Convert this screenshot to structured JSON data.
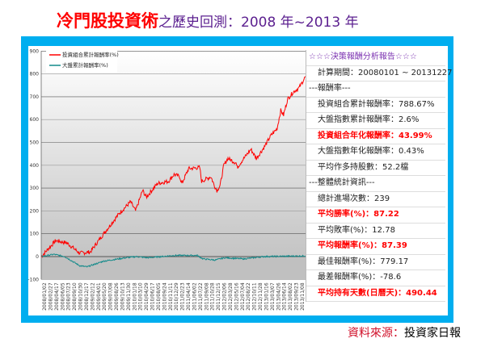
{
  "title": {
    "highlight": "冷門股投資術",
    "rest": "之歷史回測：2008 年~2013 年"
  },
  "panel": {
    "rows": [
      {
        "text": "☆☆☆決策報酬分析報告☆☆☆",
        "style": "head"
      },
      {
        "text": "計算期間：20080101 ~ 20131227",
        "style": ""
      },
      {
        "text": "---報酬率---",
        "style": "sec"
      },
      {
        "text": "投資組合累計報酬率：788.67%",
        "style": ""
      },
      {
        "text": "大盤指數累計報酬率：2.6%",
        "style": ""
      },
      {
        "text": "投資組合年化報酬率：43.99%",
        "style": "hl"
      },
      {
        "text": "大盤指數年化報酬率：0.43%",
        "style": ""
      },
      {
        "text": "平均作多持股數：52.2檔",
        "style": ""
      },
      {
        "text": "---整體統計資訊---",
        "style": "sec"
      },
      {
        "text": "總計進場次數：239",
        "style": ""
      },
      {
        "text": "平均勝率(%)：87.22",
        "style": "hl"
      },
      {
        "text": "平均敗率(%)：12.78",
        "style": ""
      },
      {
        "text": "平均報酬率(%)：87.39",
        "style": "hl"
      },
      {
        "text": "最佳報酬率(%)：779.17",
        "style": ""
      },
      {
        "text": "最差報酬率(%)：-78.6",
        "style": ""
      },
      {
        "text": "平均持有天數(日曆天)：490.44",
        "style": "hl"
      }
    ]
  },
  "footer": {
    "label": "資料來源：",
    "source": "投資家日報"
  },
  "chart_data": {
    "type": "line",
    "ylim": [
      -100,
      900
    ],
    "yticks": [
      -100,
      0,
      100,
      200,
      300,
      400,
      500,
      600,
      700,
      800,
      900
    ],
    "xlim": [
      "2008-01-02",
      "2013-12-27"
    ],
    "grid": true,
    "legend": "top-left",
    "xtick_labels": [
      "2008/01/02",
      "2008/02/27",
      "2008/04/17",
      "2008/06/05",
      "2008/07/23",
      "2008/09/10",
      "2008/10/30",
      "2008/12/17",
      "2009/02/12",
      "2009/04/01",
      "2009/05/20",
      "2009/07/08",
      "2009/08/26",
      "2009/10/13",
      "2009/11/30",
      "2010/01/18",
      "2010/03/10",
      "2010/04/29",
      "2010/06/17",
      "2010/08/05",
      "2010/09/24",
      "2010/11/11",
      "2010/12/29",
      "2011/02/23",
      "2011/04/14",
      "2011/06/02",
      "2011/07/22",
      "2011/09/08",
      "2011/10/28",
      "2011/12/15",
      "2012/02/06",
      "2012/03/28",
      "2012/05/16",
      "2012/07/04",
      "2012/08/22",
      "2012/10/11",
      "2012/11/28",
      "2013/01/16",
      "2013/03/07",
      "2013/04/26",
      "2013/06/14",
      "2013/08/02",
      "2013/09/23",
      "2013/11/08"
    ],
    "series": [
      {
        "name": "投資組合累計報酬率(%)",
        "color": "#ff0000",
        "points": [
          [
            "2008-01-02",
            0
          ],
          [
            "2008-05-01",
            70
          ],
          [
            "2008-08-01",
            60
          ],
          [
            "2008-11-15",
            15
          ],
          [
            "2009-02-10",
            20
          ],
          [
            "2009-06-01",
            100
          ],
          [
            "2009-10-10",
            190
          ],
          [
            "2010-01-10",
            240
          ],
          [
            "2010-02-20",
            200
          ],
          [
            "2010-04-20",
            290
          ],
          [
            "2010-05-20",
            260
          ],
          [
            "2010-08-20",
            320
          ],
          [
            "2010-11-20",
            330
          ],
          [
            "2011-01-05",
            360
          ],
          [
            "2011-02-20",
            350
          ],
          [
            "2011-03-10",
            320
          ],
          [
            "2011-05-05",
            385
          ],
          [
            "2011-08-05",
            390
          ],
          [
            "2011-08-20",
            330
          ],
          [
            "2011-11-05",
            350
          ],
          [
            "2011-12-05",
            310
          ],
          [
            "2011-12-25",
            290
          ],
          [
            "2012-01-20",
            310
          ],
          [
            "2012-02-20",
            400
          ],
          [
            "2012-03-25",
            430
          ],
          [
            "2012-06-01",
            410
          ],
          [
            "2012-06-10",
            390
          ],
          [
            "2012-07-20",
            420
          ],
          [
            "2012-10-01",
            470
          ],
          [
            "2012-11-15",
            430
          ],
          [
            "2013-01-20",
            480
          ],
          [
            "2013-03-15",
            530
          ],
          [
            "2013-05-05",
            560
          ],
          [
            "2013-06-05",
            640
          ],
          [
            "2013-06-28",
            620
          ],
          [
            "2013-08-01",
            690
          ],
          [
            "2013-09-15",
            720
          ],
          [
            "2013-11-05",
            740
          ],
          [
            "2013-12-27",
            789
          ]
        ]
      },
      {
        "name": "大盤累計報酬率(%)",
        "color": "#138a8a",
        "points": [
          [
            "2008-01-02",
            0
          ],
          [
            "2008-04-15",
            10
          ],
          [
            "2008-07-15",
            0
          ],
          [
            "2008-11-15",
            -40
          ],
          [
            "2009-01-15",
            -45
          ],
          [
            "2009-06-01",
            -20
          ],
          [
            "2009-12-01",
            -5
          ],
          [
            "2010-03-01",
            0
          ],
          [
            "2010-06-01",
            -5
          ],
          [
            "2011-01-05",
            5
          ],
          [
            "2011-07-15",
            5
          ],
          [
            "2011-09-01",
            -10
          ],
          [
            "2011-12-10",
            -15
          ],
          [
            "2012-03-01",
            -5
          ],
          [
            "2012-08-01",
            -10
          ],
          [
            "2013-01-10",
            0
          ],
          [
            "2013-12-27",
            3
          ]
        ]
      }
    ]
  }
}
